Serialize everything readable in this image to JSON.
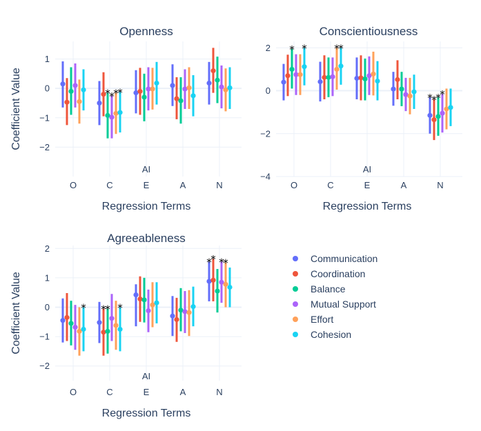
{
  "series": [
    {
      "name": "Communication",
      "color": "#636efa"
    },
    {
      "name": "Coordination",
      "color": "#EF553B"
    },
    {
      "name": "Balance",
      "color": "#00cc96"
    },
    {
      "name": "Mutual Support",
      "color": "#ab63fa"
    },
    {
      "name": "Effort",
      "color": "#FFA15A"
    },
    {
      "name": "Cohesion",
      "color": "#19d3f3"
    }
  ],
  "chart_data": [
    {
      "type": "scatter-errorbar",
      "title": "Openness",
      "xlabel": "Regression Terms",
      "ylabel": "Coefficient Value",
      "categories": [
        "O",
        "C",
        "E",
        "A",
        "N"
      ],
      "category_annotation": "AI",
      "ylim": [
        -3,
        1.6
      ],
      "yticks": [
        -2,
        -1,
        0,
        1
      ],
      "ytick_labels": [
        "−2",
        "−1",
        "0",
        "1"
      ],
      "series": [
        {
          "name": "Communication",
          "values": [
            0.15,
            -0.5,
            -0.15,
            0.1,
            0.18
          ],
          "lower": [
            -0.65,
            -1.25,
            -0.85,
            -0.6,
            -0.55
          ],
          "upper": [
            0.92,
            0.25,
            0.62,
            0.82,
            0.9
          ]
        },
        {
          "name": "Coordination",
          "values": [
            -0.47,
            -0.2,
            -0.1,
            -0.35,
            0.6
          ],
          "lower": [
            -1.25,
            -0.95,
            -0.9,
            -1.05,
            -0.15
          ],
          "upper": [
            0.35,
            0.55,
            0.7,
            0.38,
            1.38
          ]
        },
        {
          "name": "Balance",
          "values": [
            -0.1,
            -0.92,
            -0.3,
            -0.42,
            0.28
          ],
          "lower": [
            -0.9,
            -1.7,
            -1.12,
            -1.2,
            -0.5
          ],
          "upper": [
            0.72,
            -0.15,
            0.5,
            0.38,
            1.08
          ]
        },
        {
          "name": "Mutual Support",
          "values": [
            0.1,
            -0.98,
            -0.02,
            -0.02,
            0.05
          ],
          "lower": [
            -0.65,
            -1.7,
            -0.75,
            -0.7,
            -0.68
          ],
          "upper": [
            0.85,
            -0.25,
            0.72,
            0.65,
            0.78
          ]
        },
        {
          "name": "Effort",
          "values": [
            -0.45,
            -0.85,
            -0.02,
            0.02,
            -0.05
          ],
          "lower": [
            -1.2,
            -1.55,
            -0.72,
            -0.7,
            -0.78
          ],
          "upper": [
            0.3,
            -0.15,
            0.7,
            0.72,
            0.68
          ]
        },
        {
          "name": "Cohesion",
          "values": [
            -0.05,
            -0.82,
            0.18,
            -0.25,
            0.02
          ],
          "lower": [
            -0.75,
            -1.5,
            -0.55,
            -0.95,
            -0.7
          ],
          "upper": [
            0.65,
            -0.12,
            0.9,
            0.45,
            0.72
          ]
        }
      ],
      "significance": [
        {
          "category": "C",
          "series": "Balance",
          "label": "*"
        },
        {
          "category": "C",
          "series": "Mutual Support",
          "label": "*"
        },
        {
          "category": "C",
          "series": "Effort",
          "label": "*"
        },
        {
          "category": "C",
          "series": "Cohesion",
          "label": "*"
        }
      ]
    },
    {
      "type": "scatter-errorbar",
      "title": "Conscientiousness",
      "xlabel": "Regression Terms",
      "ylabel": "",
      "categories": [
        "O",
        "C",
        "E",
        "A",
        "N"
      ],
      "category_annotation": "AI",
      "ylim": [
        -4,
        2.3
      ],
      "yticks": [
        -4,
        -2,
        0,
        2
      ],
      "ytick_labels": [
        "−4",
        "−2",
        "0",
        "2"
      ],
      "series": [
        {
          "name": "Communication",
          "values": [
            0.4,
            0.42,
            0.58,
            0.08,
            -1.15
          ],
          "lower": [
            -0.45,
            -0.5,
            -0.4,
            -0.7,
            -2.0
          ],
          "upper": [
            1.25,
            1.35,
            1.55,
            0.88,
            -0.3
          ]
        },
        {
          "name": "Coordination",
          "values": [
            0.7,
            0.62,
            0.6,
            0.52,
            -1.35
          ],
          "lower": [
            -0.25,
            -0.4,
            -0.45,
            -0.4,
            -2.3
          ],
          "upper": [
            1.68,
            1.65,
            1.65,
            1.42,
            -0.4
          ]
        },
        {
          "name": "Balance",
          "values": [
            1.0,
            0.62,
            0.55,
            0.08,
            -1.2
          ],
          "lower": [
            0.1,
            -0.3,
            -0.45,
            -0.72,
            -2.1
          ],
          "upper": [
            1.95,
            1.55,
            1.5,
            0.88,
            -0.3
          ]
        },
        {
          "name": "Mutual Support",
          "values": [
            0.75,
            0.65,
            0.7,
            -0.18,
            -1.05
          ],
          "lower": [
            -0.2,
            -0.25,
            -0.2,
            -0.95,
            -1.95
          ],
          "upper": [
            1.7,
            1.55,
            1.6,
            0.6,
            -0.15
          ]
        },
        {
          "name": "Effort",
          "values": [
            0.75,
            1.0,
            0.78,
            -0.25,
            -0.85
          ],
          "lower": [
            -0.2,
            0.05,
            -0.22,
            -1.1,
            -1.8
          ],
          "upper": [
            1.7,
            2.0,
            1.82,
            0.6,
            0.1
          ]
        },
        {
          "name": "Cohesion",
          "values": [
            1.12,
            1.15,
            0.45,
            -0.05,
            -0.78
          ],
          "lower": [
            0.25,
            0.28,
            -0.45,
            -0.85,
            -1.65
          ],
          "upper": [
            2.0,
            2.0,
            1.38,
            0.75,
            0.1
          ]
        }
      ],
      "significance": [
        {
          "category": "O",
          "series": "Balance",
          "label": "*"
        },
        {
          "category": "O",
          "series": "Cohesion",
          "label": "*"
        },
        {
          "category": "C",
          "series": "Effort",
          "label": "*"
        },
        {
          "category": "C",
          "series": "Cohesion",
          "label": "*"
        },
        {
          "category": "N",
          "series": "Communication",
          "label": "*"
        },
        {
          "category": "N",
          "series": "Coordination",
          "label": "*"
        },
        {
          "category": "N",
          "series": "Balance",
          "label": "*"
        },
        {
          "category": "N",
          "series": "Mutual Support",
          "label": "*"
        }
      ]
    },
    {
      "type": "scatter-errorbar",
      "title": "Agreeableness",
      "xlabel": "Regression Terms",
      "ylabel": "Coefficient Value",
      "categories": [
        "O",
        "C",
        "E",
        "A",
        "N"
      ],
      "category_annotation": "AI",
      "ylim": [
        -2.5,
        2.1
      ],
      "yticks": [
        -2,
        -1,
        0,
        1,
        2
      ],
      "ytick_labels": [
        "−2",
        "−1",
        "0",
        "1",
        "2"
      ],
      "series": [
        {
          "name": "Communication",
          "values": [
            -0.45,
            -0.52,
            0.42,
            -0.3,
            0.88
          ],
          "lower": [
            -1.2,
            -1.22,
            -0.65,
            -0.98,
            0.2
          ],
          "upper": [
            0.3,
            0.18,
            0.78,
            0.38,
            1.55
          ]
        },
        {
          "name": "Coordination",
          "values": [
            -0.35,
            -0.85,
            0.28,
            -0.42,
            0.92
          ],
          "lower": [
            -1.15,
            -1.65,
            -0.5,
            -1.18,
            0.2
          ],
          "upper": [
            0.48,
            -0.05,
            1.05,
            0.32,
            1.65
          ]
        },
        {
          "name": "Balance",
          "values": [
            -0.55,
            -0.82,
            0.25,
            -0.1,
            0.55
          ],
          "lower": [
            -1.3,
            -1.58,
            -0.52,
            -0.82,
            -0.18
          ],
          "upper": [
            0.22,
            -0.05,
            1.0,
            0.65,
            1.3
          ]
        },
        {
          "name": "Mutual Support",
          "values": [
            -0.68,
            -0.38,
            -0.12,
            -0.15,
            0.85
          ],
          "lower": [
            -1.45,
            -1.15,
            -0.85,
            -0.88,
            0.15
          ],
          "upper": [
            0.08,
            0.45,
            0.6,
            0.55,
            1.55
          ]
        },
        {
          "name": "Effort",
          "values": [
            -0.82,
            -0.62,
            0.08,
            -0.18,
            0.78
          ],
          "lower": [
            -1.65,
            -1.45,
            -0.68,
            -0.98,
            0.0
          ],
          "upper": [
            0.0,
            0.22,
            0.85,
            0.58,
            1.52
          ]
        },
        {
          "name": "Cohesion",
          "values": [
            -0.75,
            -0.75,
            0.15,
            0.02,
            0.68
          ],
          "lower": [
            -1.5,
            -1.5,
            -0.55,
            -0.65,
            0.0
          ],
          "upper": [
            0.0,
            0.0,
            0.85,
            0.7,
            1.35
          ]
        }
      ],
      "significance": [
        {
          "category": "O",
          "series": "Cohesion",
          "label": "*"
        },
        {
          "category": "C",
          "series": "Coordination",
          "label": "*"
        },
        {
          "category": "C",
          "series": "Balance",
          "label": "*"
        },
        {
          "category": "C",
          "series": "Cohesion",
          "label": "*"
        },
        {
          "category": "N",
          "series": "Communication",
          "label": "*"
        },
        {
          "category": "N",
          "series": "Coordination",
          "label": "*"
        },
        {
          "category": "N",
          "series": "Mutual Support",
          "label": "*"
        },
        {
          "category": "N",
          "series": "Effort",
          "label": "*"
        }
      ]
    }
  ]
}
